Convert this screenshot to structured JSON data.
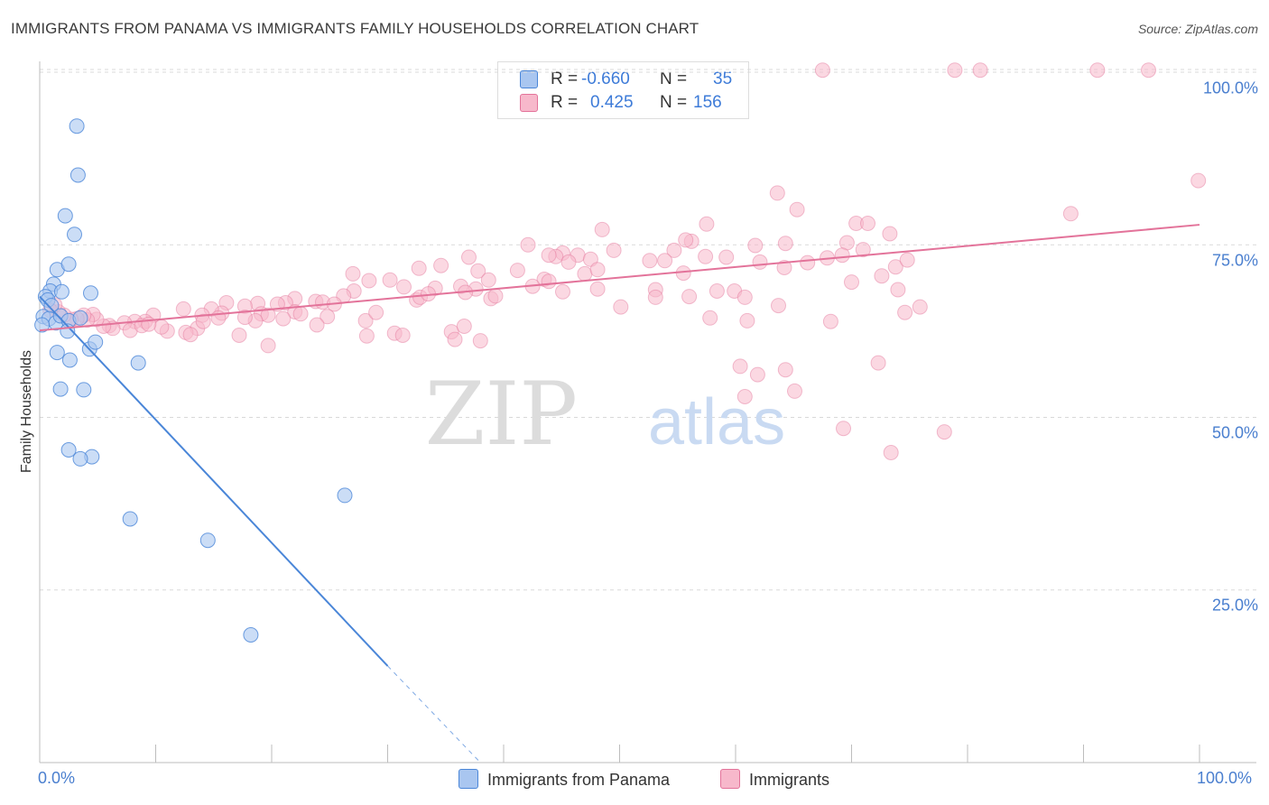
{
  "header": {
    "title": "IMMIGRANTS FROM PANAMA VS IMMIGRANTS FAMILY HOUSEHOLDS CORRELATION CHART",
    "source": "Source: ZipAtlas.com"
  },
  "watermark": {
    "zip": "ZIP",
    "atlas": "atlas"
  },
  "legend_top": {
    "rows": [
      {
        "r_label": "R =",
        "r_value": "-0.660",
        "n_label": "N =",
        "n_value": "35",
        "color": "#a9c6f0"
      },
      {
        "r_label": "R =",
        "r_value": "0.425",
        "n_label": "N =",
        "n_value": "156",
        "color": "#f7b8cb"
      }
    ]
  },
  "legend_bottom": {
    "items": [
      {
        "label": "Immigrants from Panama",
        "color": "#a9c6f0"
      },
      {
        "label": "Immigrants",
        "color": "#f7b8cb"
      }
    ]
  },
  "chart_data": {
    "type": "scatter",
    "title": "IMMIGRANTS FROM PANAMA VS IMMIGRANTS FAMILY HOUSEHOLDS CORRELATION CHART",
    "xlabel": "",
    "ylabel": "Family Households",
    "xlim": [
      0,
      100
    ],
    "ylim": [
      0,
      100
    ],
    "x_tick_labels": [
      "0.0%",
      "100.0%"
    ],
    "y_ticks": [
      25,
      50,
      75,
      100
    ],
    "y_tick_labels": [
      "25.0%",
      "50.0%",
      "75.0%",
      "100.0%"
    ],
    "grid": true,
    "series": [
      {
        "name": "Immigrants from Panama",
        "color": "#4a86d8",
        "fill": "#a9c6f0",
        "r": -0.66,
        "n": 35,
        "trend": {
          "x0": 0,
          "y0": 67.5,
          "x1": 30.0,
          "y1": 14.0,
          "dash_to_x": 38.0,
          "dash_to_y": 0.0
        },
        "points": [
          [
            3.2,
            92.2
          ],
          [
            3.3,
            85.1
          ],
          [
            2.2,
            79.2
          ],
          [
            3.0,
            76.5
          ],
          [
            1.5,
            71.4
          ],
          [
            2.5,
            72.2
          ],
          [
            1.2,
            69.3
          ],
          [
            0.9,
            68.3
          ],
          [
            1.9,
            68.2
          ],
          [
            4.4,
            68.0
          ],
          [
            0.5,
            67.5
          ],
          [
            0.7,
            67.0
          ],
          [
            1.0,
            66.2
          ],
          [
            0.3,
            64.6
          ],
          [
            0.8,
            64.3
          ],
          [
            1.4,
            63.7
          ],
          [
            1.8,
            64.7
          ],
          [
            2.5,
            64.0
          ],
          [
            3.5,
            64.4
          ],
          [
            2.4,
            62.5
          ],
          [
            0.2,
            63.4
          ],
          [
            1.5,
            59.4
          ],
          [
            4.3,
            59.9
          ],
          [
            4.8,
            60.9
          ],
          [
            2.6,
            58.3
          ],
          [
            8.5,
            57.9
          ],
          [
            1.8,
            54.1
          ],
          [
            3.8,
            54.0
          ],
          [
            2.5,
            45.3
          ],
          [
            4.5,
            44.3
          ],
          [
            3.5,
            44.0
          ],
          [
            26.3,
            38.7
          ],
          [
            7.8,
            35.3
          ],
          [
            14.5,
            32.2
          ],
          [
            18.2,
            18.5
          ]
        ]
      },
      {
        "name": "Immigrants",
        "color": "#e3739a",
        "fill": "#f7b8cb",
        "r": 0.425,
        "n": 156,
        "trend": {
          "x0": 0,
          "y0": 62.6,
          "x1": 100.0,
          "y1": 77.9
        },
        "points": [
          [
            67.5,
            100.3
          ],
          [
            78.9,
            100.3
          ],
          [
            81.1,
            100.3
          ],
          [
            91.2,
            100.3
          ],
          [
            95.6,
            100.3
          ],
          [
            99.9,
            84.3
          ],
          [
            63.6,
            82.5
          ],
          [
            65.3,
            80.1
          ],
          [
            88.9,
            79.5
          ],
          [
            57.5,
            78.0
          ],
          [
            70.4,
            78.1
          ],
          [
            71.4,
            78.1
          ],
          [
            48.5,
            77.2
          ],
          [
            56.2,
            75.5
          ],
          [
            73.3,
            76.6
          ],
          [
            69.6,
            75.3
          ],
          [
            64.3,
            75.2
          ],
          [
            61.7,
            74.9
          ],
          [
            54.7,
            74.2
          ],
          [
            55.7,
            75.7
          ],
          [
            49.5,
            74.2
          ],
          [
            42.1,
            75.0
          ],
          [
            59.2,
            73.2
          ],
          [
            64.2,
            71.7
          ],
          [
            66.2,
            72.4
          ],
          [
            67.9,
            73.1
          ],
          [
            57.4,
            73.3
          ],
          [
            52.6,
            72.7
          ],
          [
            53.9,
            72.7
          ],
          [
            45.1,
            73.8
          ],
          [
            46.4,
            73.5
          ],
          [
            44.5,
            73.3
          ],
          [
            43.9,
            73.5
          ],
          [
            47.5,
            72.9
          ],
          [
            37.0,
            73.2
          ],
          [
            45.6,
            72.5
          ],
          [
            41.2,
            71.3
          ],
          [
            34.6,
            72.0
          ],
          [
            32.7,
            71.6
          ],
          [
            47.0,
            70.8
          ],
          [
            48.1,
            71.4
          ],
          [
            37.8,
            71.2
          ],
          [
            43.5,
            70.0
          ],
          [
            43.9,
            69.7
          ],
          [
            38.7,
            69.9
          ],
          [
            36.3,
            69.0
          ],
          [
            34.1,
            68.7
          ],
          [
            31.4,
            68.9
          ],
          [
            30.2,
            69.9
          ],
          [
            28.4,
            69.8
          ],
          [
            27.0,
            70.8
          ],
          [
            37.6,
            68.6
          ],
          [
            32.5,
            67.0
          ],
          [
            36.7,
            68.1
          ],
          [
            38.9,
            67.2
          ],
          [
            32.8,
            67.4
          ],
          [
            33.5,
            67.9
          ],
          [
            27.1,
            68.3
          ],
          [
            26.2,
            67.6
          ],
          [
            23.8,
            66.8
          ],
          [
            24.4,
            66.7
          ],
          [
            25.4,
            66.4
          ],
          [
            22.0,
            67.2
          ],
          [
            21.2,
            66.6
          ],
          [
            20.5,
            66.4
          ],
          [
            18.8,
            66.5
          ],
          [
            17.7,
            66.1
          ],
          [
            16.1,
            66.6
          ],
          [
            15.7,
            65.1
          ],
          [
            14.8,
            65.7
          ],
          [
            14.0,
            64.8
          ],
          [
            15.4,
            64.4
          ],
          [
            12.4,
            65.7
          ],
          [
            13.6,
            62.9
          ],
          [
            12.6,
            62.3
          ],
          [
            19.1,
            65.0
          ],
          [
            22.0,
            65.3
          ],
          [
            19.7,
            64.8
          ],
          [
            18.6,
            64.0
          ],
          [
            17.7,
            64.5
          ],
          [
            9.8,
            64.8
          ],
          [
            9.1,
            63.9
          ],
          [
            8.2,
            63.9
          ],
          [
            7.3,
            63.7
          ],
          [
            6.0,
            63.3
          ],
          [
            6.3,
            62.9
          ],
          [
            5.5,
            63.2
          ],
          [
            4.9,
            64.2
          ],
          [
            4.6,
            64.9
          ],
          [
            4.1,
            64.1
          ],
          [
            3.8,
            64.8
          ],
          [
            3.2,
            64.3
          ],
          [
            2.7,
            64.2
          ],
          [
            2.1,
            64.8
          ],
          [
            1.6,
            65.3
          ],
          [
            1.3,
            66.3
          ],
          [
            0.9,
            65.5
          ],
          [
            11.0,
            62.5
          ],
          [
            10.5,
            63.1
          ],
          [
            7.8,
            62.6
          ],
          [
            8.8,
            63.3
          ],
          [
            9.4,
            63.5
          ],
          [
            13.0,
            62.0
          ],
          [
            14.1,
            63.9
          ],
          [
            17.2,
            61.9
          ],
          [
            19.7,
            60.4
          ],
          [
            21.0,
            64.3
          ],
          [
            24.8,
            64.6
          ],
          [
            28.1,
            64.0
          ],
          [
            28.2,
            61.8
          ],
          [
            30.6,
            62.2
          ],
          [
            29.0,
            65.2
          ],
          [
            22.5,
            65.0
          ],
          [
            23.9,
            63.4
          ],
          [
            31.3,
            61.9
          ],
          [
            35.5,
            62.4
          ],
          [
            38.0,
            61.1
          ],
          [
            35.8,
            61.3
          ],
          [
            36.6,
            63.2
          ],
          [
            39.3,
            67.6
          ],
          [
            42.5,
            69.0
          ],
          [
            45.1,
            68.2
          ],
          [
            48.1,
            68.6
          ],
          [
            50.1,
            66.0
          ],
          [
            53.1,
            68.5
          ],
          [
            56.0,
            67.5
          ],
          [
            57.8,
            64.4
          ],
          [
            58.4,
            68.3
          ],
          [
            61.0,
            64.0
          ],
          [
            59.9,
            68.3
          ],
          [
            55.5,
            70.9
          ],
          [
            53.1,
            67.4
          ],
          [
            60.8,
            67.4
          ],
          [
            62.1,
            72.5
          ],
          [
            63.7,
            66.2
          ],
          [
            68.2,
            63.9
          ],
          [
            70.0,
            69.6
          ],
          [
            72.6,
            70.5
          ],
          [
            73.8,
            71.8
          ],
          [
            74.8,
            72.8
          ],
          [
            74.0,
            68.5
          ],
          [
            71.0,
            74.3
          ],
          [
            74.6,
            65.2
          ],
          [
            75.9,
            66.0
          ],
          [
            72.3,
            57.9
          ],
          [
            64.3,
            56.9
          ],
          [
            65.1,
            53.8
          ],
          [
            69.3,
            48.4
          ],
          [
            73.4,
            44.9
          ],
          [
            78.0,
            47.9
          ],
          [
            60.4,
            57.4
          ],
          [
            61.9,
            56.2
          ],
          [
            60.8,
            53.0
          ],
          [
            69.2,
            73.5
          ]
        ]
      }
    ]
  }
}
